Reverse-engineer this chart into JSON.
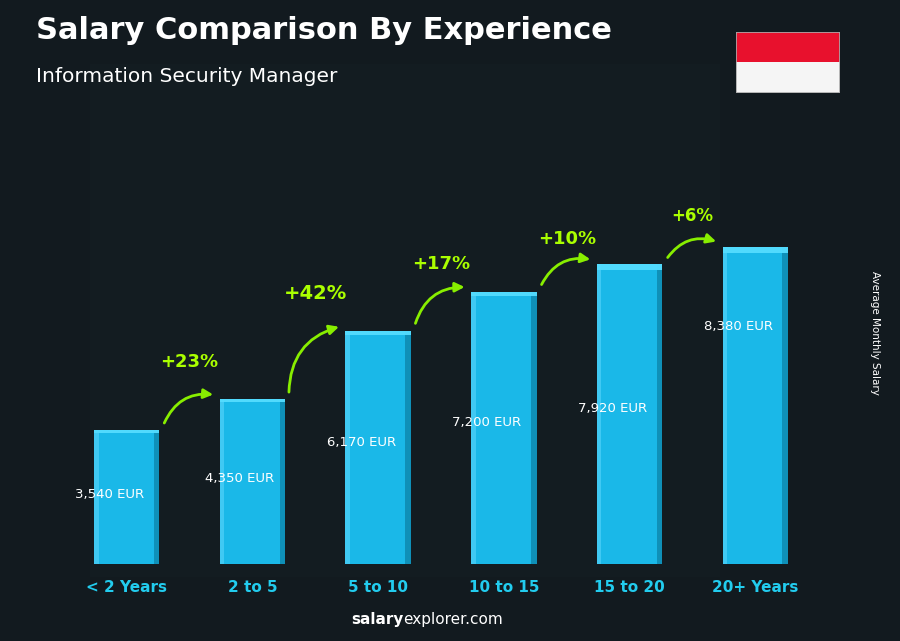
{
  "title": "Salary Comparison By Experience",
  "subtitle": "Information Security Manager",
  "categories": [
    "< 2 Years",
    "2 to 5",
    "5 to 10",
    "10 to 15",
    "15 to 20",
    "20+ Years"
  ],
  "values": [
    3540,
    4350,
    6170,
    7200,
    7920,
    8380
  ],
  "labels": [
    "3,540 EUR",
    "4,350 EUR",
    "6,170 EUR",
    "7,200 EUR",
    "7,920 EUR",
    "8,380 EUR"
  ],
  "pct_changes": [
    "+23%",
    "+42%",
    "+17%",
    "+10%",
    "+6%"
  ],
  "bar_color_main": "#1ab8e8",
  "bar_color_left": "#45ccf5",
  "bar_color_right": "#0e8ab0",
  "bar_color_top": "#55ddff",
  "bg_color": "#1a1a2e",
  "title_color": "#ffffff",
  "subtitle_color": "#ffffff",
  "label_color": "#ffffff",
  "pct_color": "#aaff00",
  "arrow_color": "#88ee00",
  "xlabel_color": "#22ccee",
  "ylabel_text": "Average Monthly Salary",
  "ylim": [
    0,
    10500
  ],
  "bar_width": 0.52
}
